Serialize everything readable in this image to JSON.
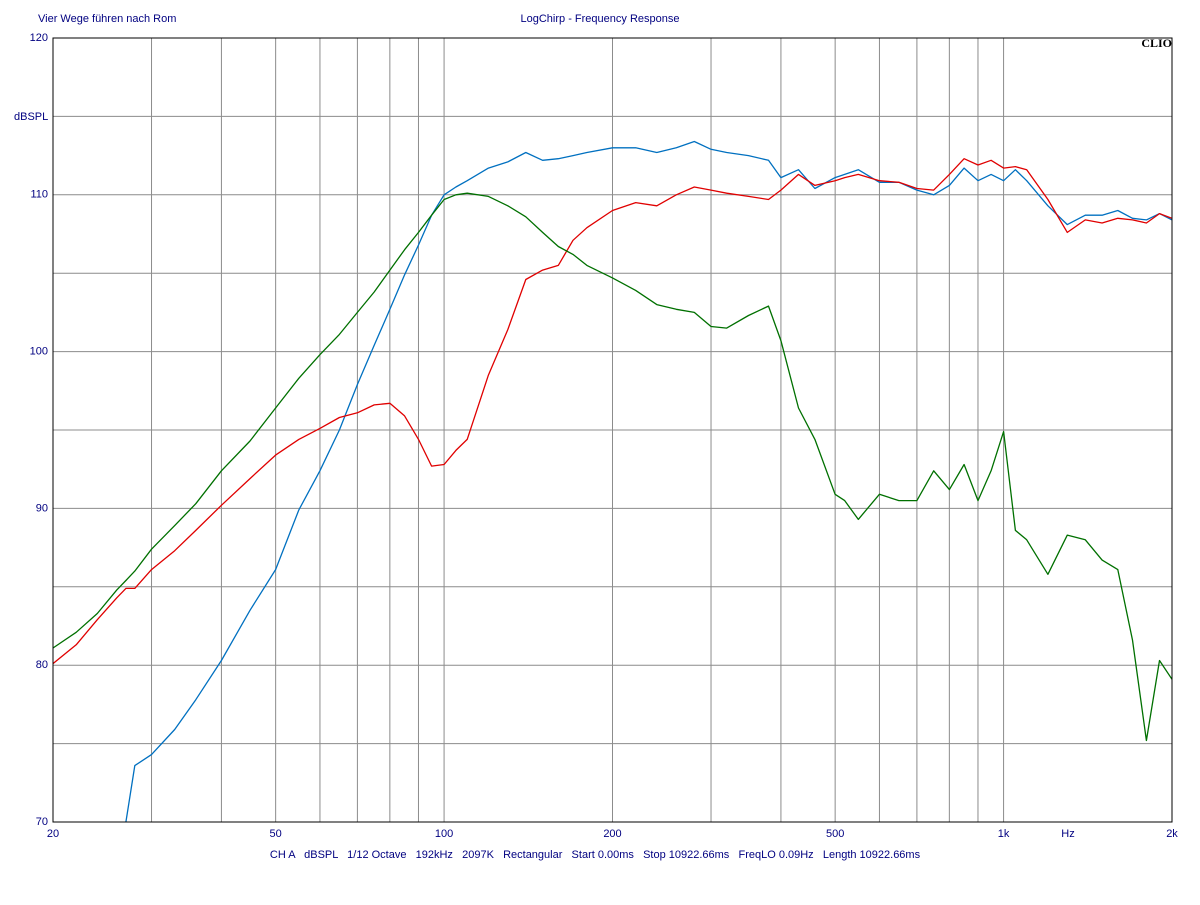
{
  "chart_data": {
    "type": "line",
    "subtitle": "Vier Wege führen nach Rom",
    "title": "LogChirp - Frequency Response",
    "logo": "CLIO",
    "y_label": "dBSPL",
    "x_label": "Hz",
    "footer": "CH A   dBSPL   1/12 Octave   192kHz   2097K   Rectangular   Start 0.00ms   Stop 10922.66ms   FreqLO 0.09Hz   Length 10922.66ms",
    "xscale": "log",
    "grid": true,
    "xlim": [
      20,
      2000
    ],
    "ylim": [
      70,
      120
    ],
    "xticks": [
      20,
      50,
      100,
      200,
      500,
      {
        "value": 1000,
        "label": "1k"
      },
      {
        "value": 2000,
        "label": "2k"
      }
    ],
    "xminor": [
      30,
      40,
      60,
      70,
      80,
      90,
      300,
      400,
      600,
      700,
      800,
      900
    ],
    "yticks": [
      70,
      80,
      90,
      100,
      110,
      120
    ],
    "yminor": [
      75,
      85,
      95,
      105,
      115
    ],
    "x": [
      20,
      22,
      24,
      26,
      27,
      28,
      30,
      33,
      36,
      40,
      45,
      50,
      55,
      60,
      65,
      70,
      75,
      80,
      85,
      90,
      95,
      100,
      105,
      110,
      120,
      130,
      140,
      150,
      160,
      170,
      180,
      200,
      220,
      240,
      260,
      280,
      300,
      320,
      350,
      380,
      400,
      430,
      460,
      500,
      520,
      550,
      600,
      650,
      700,
      750,
      800,
      850,
      900,
      950,
      1000,
      1050,
      1100,
      1200,
      1300,
      1400,
      1500,
      1600,
      1700,
      1800,
      1900,
      2000
    ],
    "series": [
      {
        "color": "#0070c0",
        "values": [
          null,
          null,
          null,
          null,
          70.0,
          73.6,
          74.3,
          75.9,
          77.8,
          80.3,
          83.5,
          86.1,
          89.9,
          92.4,
          95.0,
          97.9,
          100.4,
          102.7,
          104.9,
          106.8,
          108.7,
          110.0,
          110.5,
          110.9,
          111.7,
          112.1,
          112.7,
          112.2,
          112.3,
          112.5,
          112.7,
          113.0,
          113.0,
          112.7,
          113.0,
          113.4,
          112.9,
          112.7,
          112.5,
          112.2,
          111.1,
          111.6,
          110.4,
          111.1,
          111.3,
          111.6,
          110.8,
          110.8,
          110.3,
          110.0,
          110.6,
          111.7,
          110.9,
          111.3,
          110.9,
          111.6,
          110.9,
          109.3,
          108.1,
          108.7,
          108.7,
          109.0,
          108.5,
          108.4,
          108.8,
          108.4
        ]
      },
      {
        "color": "#e00000",
        "values": [
          80.1,
          81.3,
          82.9,
          84.3,
          84.9,
          84.9,
          86.1,
          87.3,
          88.6,
          90.2,
          91.9,
          93.4,
          94.4,
          95.1,
          95.8,
          96.1,
          96.6,
          96.7,
          95.9,
          94.4,
          92.7,
          92.8,
          93.7,
          94.4,
          98.5,
          101.4,
          104.6,
          105.2,
          105.5,
          107.1,
          107.9,
          109.0,
          109.5,
          109.3,
          110.0,
          110.5,
          110.3,
          110.1,
          109.9,
          109.7,
          110.3,
          111.3,
          110.6,
          110.9,
          111.1,
          111.3,
          110.9,
          110.8,
          110.4,
          110.3,
          111.3,
          112.3,
          111.9,
          112.2,
          111.7,
          111.8,
          111.6,
          109.7,
          107.6,
          108.4,
          108.2,
          108.5,
          108.4,
          108.2,
          108.8,
          108.5
        ]
      },
      {
        "color": "#007000",
        "values": [
          81.1,
          82.1,
          83.3,
          84.8,
          85.4,
          86.0,
          87.4,
          88.9,
          90.3,
          92.4,
          94.3,
          96.4,
          98.3,
          99.8,
          101.1,
          102.5,
          103.8,
          105.2,
          106.5,
          107.6,
          108.7,
          109.7,
          110.0,
          110.1,
          109.9,
          109.3,
          108.6,
          107.6,
          106.7,
          106.2,
          105.5,
          104.7,
          103.9,
          103.0,
          102.7,
          102.5,
          101.6,
          101.5,
          102.3,
          102.9,
          100.7,
          96.4,
          94.4,
          90.9,
          90.5,
          89.3,
          90.9,
          90.5,
          90.5,
          92.4,
          91.2,
          92.8,
          90.5,
          92.4,
          94.9,
          88.6,
          88.0,
          85.8,
          88.3,
          88.0,
          86.7,
          86.1,
          81.6,
          75.2,
          80.3,
          79.1
        ]
      }
    ]
  }
}
